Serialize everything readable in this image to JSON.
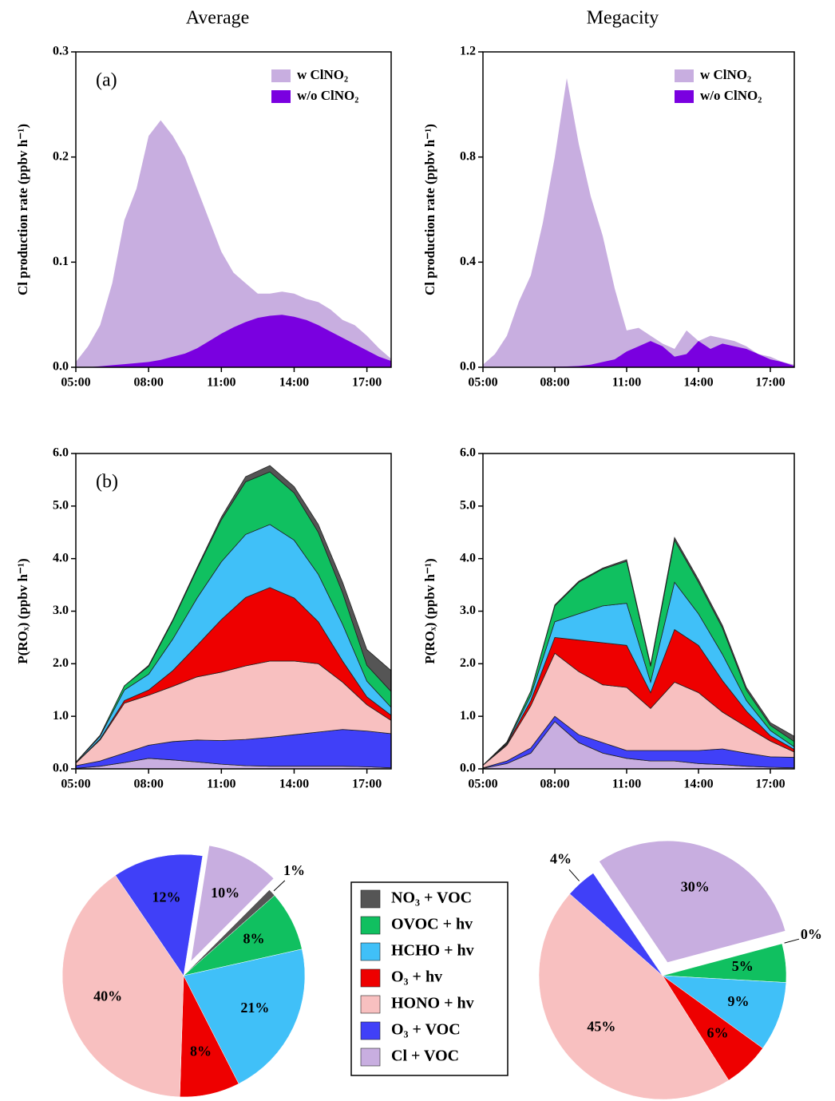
{
  "chart_data": [
    {
      "type": "area",
      "title": "Average",
      "panel": "(a)",
      "ylabel": "Cl production rate (ppbv h⁻¹)",
      "x": [
        5,
        5.5,
        6,
        6.5,
        7,
        7.5,
        8,
        8.5,
        9,
        9.5,
        10,
        10.5,
        11,
        11.5,
        12,
        12.5,
        13,
        13.5,
        14,
        14.5,
        15,
        15.5,
        16,
        16.5,
        17,
        17.5,
        18
      ],
      "series": [
        {
          "name": "w ClNO₂",
          "color": "#c8aee0",
          "values": [
            0.005,
            0.02,
            0.04,
            0.08,
            0.14,
            0.17,
            0.22,
            0.235,
            0.22,
            0.2,
            0.17,
            0.14,
            0.11,
            0.09,
            0.08,
            0.07,
            0.07,
            0.072,
            0.07,
            0.065,
            0.062,
            0.055,
            0.045,
            0.04,
            0.03,
            0.018,
            0.008
          ]
        },
        {
          "name": "w/o ClNO₂",
          "color": "#7a00e0",
          "values": [
            0,
            0,
            0.001,
            0.002,
            0.003,
            0.004,
            0.005,
            0.007,
            0.01,
            0.013,
            0.018,
            0.025,
            0.032,
            0.038,
            0.043,
            0.047,
            0.049,
            0.05,
            0.048,
            0.045,
            0.04,
            0.034,
            0.028,
            0.022,
            0.016,
            0.01,
            0.006
          ]
        }
      ],
      "xlim": [
        5,
        18
      ],
      "xticks": [
        {
          "value": 5,
          "label": "05:00"
        },
        {
          "value": 8,
          "label": "08:00"
        },
        {
          "value": 11,
          "label": "11:00"
        },
        {
          "value": 14,
          "label": "14:00"
        },
        {
          "value": 17,
          "label": "17:00"
        }
      ],
      "ylim": [
        0,
        0.3
      ],
      "yticks": [
        {
          "value": 0,
          "label": "0.0"
        },
        0.1,
        0.2,
        0.3
      ],
      "legend": "upper right"
    },
    {
      "type": "area",
      "title": "Megacity",
      "ylabel": "Cl production rate (ppbv h⁻¹)",
      "x": [
        5,
        5.5,
        6,
        6.5,
        7,
        7.5,
        8,
        8.5,
        9,
        9.5,
        10,
        10.5,
        11,
        11.5,
        12,
        12.5,
        13,
        13.5,
        14,
        14.5,
        15,
        15.5,
        16,
        16.5,
        17,
        17.5,
        18
      ],
      "series": [
        {
          "name": "w ClNO₂",
          "color": "#c8aee0",
          "values": [
            0.01,
            0.05,
            0.12,
            0.25,
            0.35,
            0.55,
            0.8,
            1.1,
            0.85,
            0.65,
            0.5,
            0.3,
            0.14,
            0.15,
            0.12,
            0.09,
            0.07,
            0.14,
            0.1,
            0.12,
            0.11,
            0.1,
            0.08,
            0.05,
            0.04,
            0.02,
            0.01
          ]
        },
        {
          "name": "w/o ClNO₂",
          "color": "#7a00e0",
          "values": [
            0,
            0,
            0,
            0,
            0,
            0,
            0.002,
            0.003,
            0.005,
            0.01,
            0.02,
            0.03,
            0.06,
            0.08,
            0.1,
            0.08,
            0.04,
            0.05,
            0.1,
            0.07,
            0.09,
            0.08,
            0.07,
            0.05,
            0.03,
            0.02,
            0.005
          ]
        }
      ],
      "xlim": [
        5,
        18
      ],
      "xticks": [
        {
          "value": 5,
          "label": "05:00"
        },
        {
          "value": 8,
          "label": "08:00"
        },
        {
          "value": 11,
          "label": "11:00"
        },
        {
          "value": 14,
          "label": "14:00"
        },
        {
          "value": 17,
          "label": "17:00"
        }
      ],
      "ylim": [
        0,
        1.2
      ],
      "yticks": [
        {
          "value": 0,
          "label": "0.0"
        },
        0.4,
        0.8,
        1.2
      ],
      "legend": "upper right"
    },
    {
      "type": "stacked_area",
      "panel": "(b)",
      "ylabel": "P(ROₓ) (ppbv h⁻¹)",
      "x": [
        5,
        6,
        7,
        8,
        9,
        10,
        11,
        12,
        13,
        14,
        15,
        16,
        17,
        18
      ],
      "series": [
        {
          "values": [
            0,
            0,
            0,
            0.02,
            0.02,
            0.03,
            0.05,
            0.1,
            0.12,
            0.12,
            0.15,
            0.2,
            0.3,
            0.4
          ]
        },
        {
          "values": [
            0.005,
            0.02,
            0.08,
            0.15,
            0.35,
            0.55,
            0.8,
            1.0,
            1.0,
            0.9,
            0.8,
            0.6,
            0.3,
            0.3
          ]
        },
        {
          "values": [
            0.01,
            0.05,
            0.2,
            0.3,
            0.6,
            0.9,
            1.1,
            1.2,
            1.2,
            1.1,
            0.9,
            0.7,
            0.3,
            0.15
          ]
        },
        {
          "values": [
            0,
            0.02,
            0.05,
            0.1,
            0.3,
            0.6,
            1.0,
            1.3,
            1.4,
            1.2,
            0.8,
            0.4,
            0.15,
            0.1
          ]
        },
        {
          "values": [
            0.05,
            0.4,
            0.95,
            0.95,
            1.05,
            1.2,
            1.3,
            1.4,
            1.45,
            1.4,
            1.3,
            0.9,
            0.5,
            0.25
          ]
        },
        {
          "values": [
            0.05,
            0.1,
            0.18,
            0.25,
            0.35,
            0.42,
            0.45,
            0.5,
            0.55,
            0.6,
            0.65,
            0.7,
            0.68,
            0.65
          ]
        },
        {
          "values": [
            0.01,
            0.05,
            0.12,
            0.2,
            0.17,
            0.13,
            0.09,
            0.06,
            0.05,
            0.05,
            0.05,
            0.05,
            0.04,
            0.02
          ]
        }
      ],
      "xlim": [
        5,
        18
      ],
      "xticks": [
        {
          "value": 5,
          "label": "05:00"
        },
        {
          "value": 8,
          "label": "08:00"
        },
        {
          "value": 11,
          "label": "11:00"
        },
        {
          "value": 14,
          "label": "14:00"
        },
        {
          "value": 17,
          "label": "17:00"
        }
      ],
      "ylim": [
        0,
        6
      ],
      "yticks": [
        {
          "value": 0,
          "label": "0.0"
        },
        {
          "value": 1,
          "label": "1.0"
        },
        {
          "value": 2,
          "label": "2.0"
        },
        {
          "value": 3,
          "label": "3.0"
        },
        {
          "value": 4,
          "label": "4.0"
        },
        {
          "value": 5,
          "label": "5.0"
        },
        {
          "value": 6,
          "label": "6.0"
        }
      ]
    },
    {
      "type": "stacked_area",
      "ylabel": "P(ROₓ) (ppbv h⁻¹)",
      "x": [
        5,
        6,
        7,
        8,
        9,
        10,
        11,
        12,
        13,
        14,
        15,
        16,
        17,
        18
      ],
      "series": [
        {
          "values": [
            0,
            0,
            0,
            0.02,
            0.02,
            0.02,
            0.03,
            0.03,
            0.05,
            0.05,
            0.05,
            0.05,
            0.05,
            0.1
          ]
        },
        {
          "values": [
            0,
            0.02,
            0.08,
            0.3,
            0.6,
            0.7,
            0.8,
            0.3,
            0.8,
            0.6,
            0.5,
            0.2,
            0.1,
            0.1
          ]
        },
        {
          "values": [
            0,
            0.02,
            0.1,
            0.3,
            0.5,
            0.7,
            0.8,
            0.2,
            0.9,
            0.6,
            0.5,
            0.2,
            0.1,
            0.05
          ]
        },
        {
          "values": [
            0,
            0.02,
            0.1,
            0.3,
            0.6,
            0.8,
            0.8,
            0.3,
            1.0,
            0.9,
            0.6,
            0.3,
            0.1,
            0.05
          ]
        },
        {
          "values": [
            0.05,
            0.3,
            0.8,
            1.2,
            1.2,
            1.1,
            1.2,
            0.8,
            1.3,
            1.1,
            0.7,
            0.5,
            0.3,
            0.1
          ]
        },
        {
          "values": [
            0.01,
            0.05,
            0.1,
            0.1,
            0.15,
            0.2,
            0.15,
            0.2,
            0.2,
            0.25,
            0.3,
            0.25,
            0.2,
            0.2
          ]
        },
        {
          "values": [
            0.01,
            0.1,
            0.3,
            0.9,
            0.5,
            0.3,
            0.2,
            0.15,
            0.15,
            0.1,
            0.08,
            0.05,
            0.03,
            0.02
          ]
        }
      ],
      "xlim": [
        5,
        18
      ],
      "xticks": [
        {
          "value": 5,
          "label": "05:00"
        },
        {
          "value": 8,
          "label": "08:00"
        },
        {
          "value": 11,
          "label": "11:00"
        },
        {
          "value": 14,
          "label": "14:00"
        },
        {
          "value": 17,
          "label": "17:00"
        }
      ],
      "ylim": [
        0,
        6
      ],
      "yticks": [
        {
          "value": 0,
          "label": "0.0"
        },
        {
          "value": 1,
          "label": "1.0"
        },
        {
          "value": 2,
          "label": "2.0"
        },
        {
          "value": 3,
          "label": "3.0"
        },
        {
          "value": 4,
          "label": "4.0"
        },
        {
          "value": 5,
          "label": "5.0"
        },
        {
          "value": 6,
          "label": "6.0"
        }
      ]
    },
    {
      "type": "pie",
      "values": [
        1,
        8,
        21,
        8,
        40,
        12,
        10
      ],
      "value_labels": [
        "1%",
        "8%",
        "21%",
        "8%",
        "40%",
        "12%",
        "10%"
      ]
    },
    {
      "type": "pie",
      "values": [
        0,
        5,
        9,
        6,
        45,
        4,
        30
      ],
      "value_labels": [
        "0%",
        "5%",
        "9%",
        "6%",
        "45%",
        "4%",
        "30%"
      ]
    }
  ],
  "legend": {
    "labels": [
      "NO₃ + VOC",
      "OVOC + hv",
      "HCHO + hv",
      "O₃ + hv",
      "HONO + hv",
      "O₃ + VOC",
      "Cl + VOC"
    ],
    "colors": [
      "#555555",
      "#10c060",
      "#40c0f8",
      "#ee0000",
      "#f8c0c0",
      "#4040f8",
      "#c8aee0"
    ]
  }
}
